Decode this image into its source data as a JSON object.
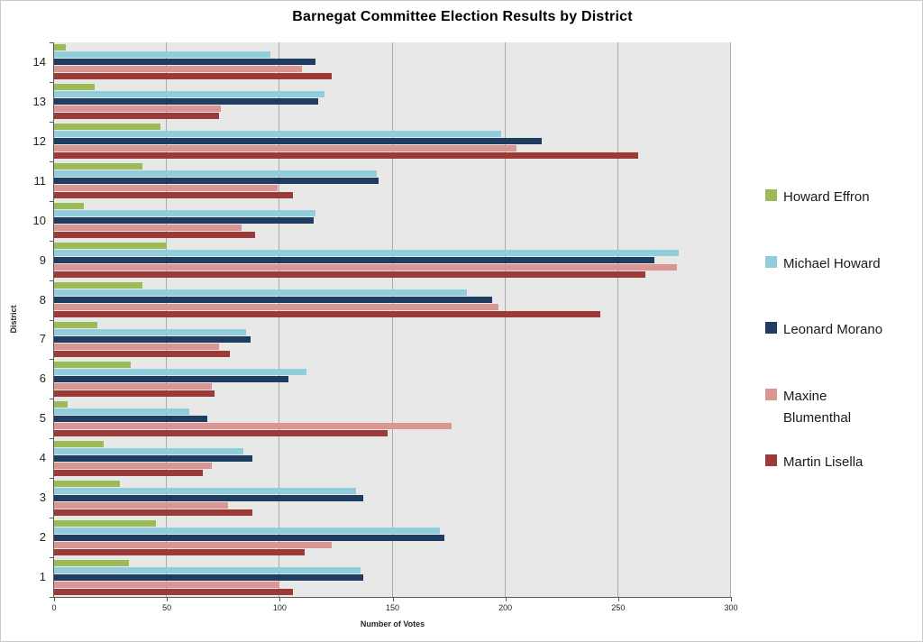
{
  "chart_data": {
    "type": "bar",
    "orientation": "horizontal",
    "title": "Barnegat Committee Election Results by District",
    "xlabel": "Number of Votes",
    "ylabel": "District",
    "xlim": [
      0,
      300
    ],
    "xticks": [
      0,
      50,
      100,
      150,
      200,
      250,
      300
    ],
    "grid": true,
    "legend_position": "right",
    "categories": [
      1,
      2,
      3,
      4,
      5,
      6,
      7,
      8,
      9,
      10,
      11,
      12,
      13,
      14
    ],
    "category_screen_order": "district 14 at top, district 1 at bottom; within each cluster bars top-to-bottom follow series order",
    "plot_background": "#e8e8e8",
    "series": [
      {
        "name": "Howard Effron",
        "color": "#9bbb59",
        "values": [
          33,
          45,
          29,
          22,
          6,
          34,
          19,
          39,
          50,
          13,
          39,
          47,
          18,
          5
        ]
      },
      {
        "name": "Michael Howard",
        "color": "#92cddc",
        "values": [
          136,
          171,
          134,
          84,
          60,
          112,
          85,
          183,
          277,
          116,
          143,
          198,
          120,
          96
        ]
      },
      {
        "name": "Leonard Morano",
        "color": "#1f3c61",
        "values": [
          137,
          173,
          137,
          88,
          68,
          104,
          87,
          194,
          266,
          115,
          144,
          216,
          117,
          116
        ]
      },
      {
        "name": "Maxine Blumenthal",
        "color": "#d99693",
        "values": [
          100,
          123,
          77,
          70,
          176,
          70,
          73,
          197,
          276,
          83,
          99,
          205,
          74,
          110
        ]
      },
      {
        "name": "Martin Lisella",
        "color": "#9c3a37",
        "values": [
          106,
          111,
          88,
          66,
          148,
          71,
          78,
          242,
          262,
          89,
          106,
          259,
          73,
          123
        ]
      }
    ]
  }
}
